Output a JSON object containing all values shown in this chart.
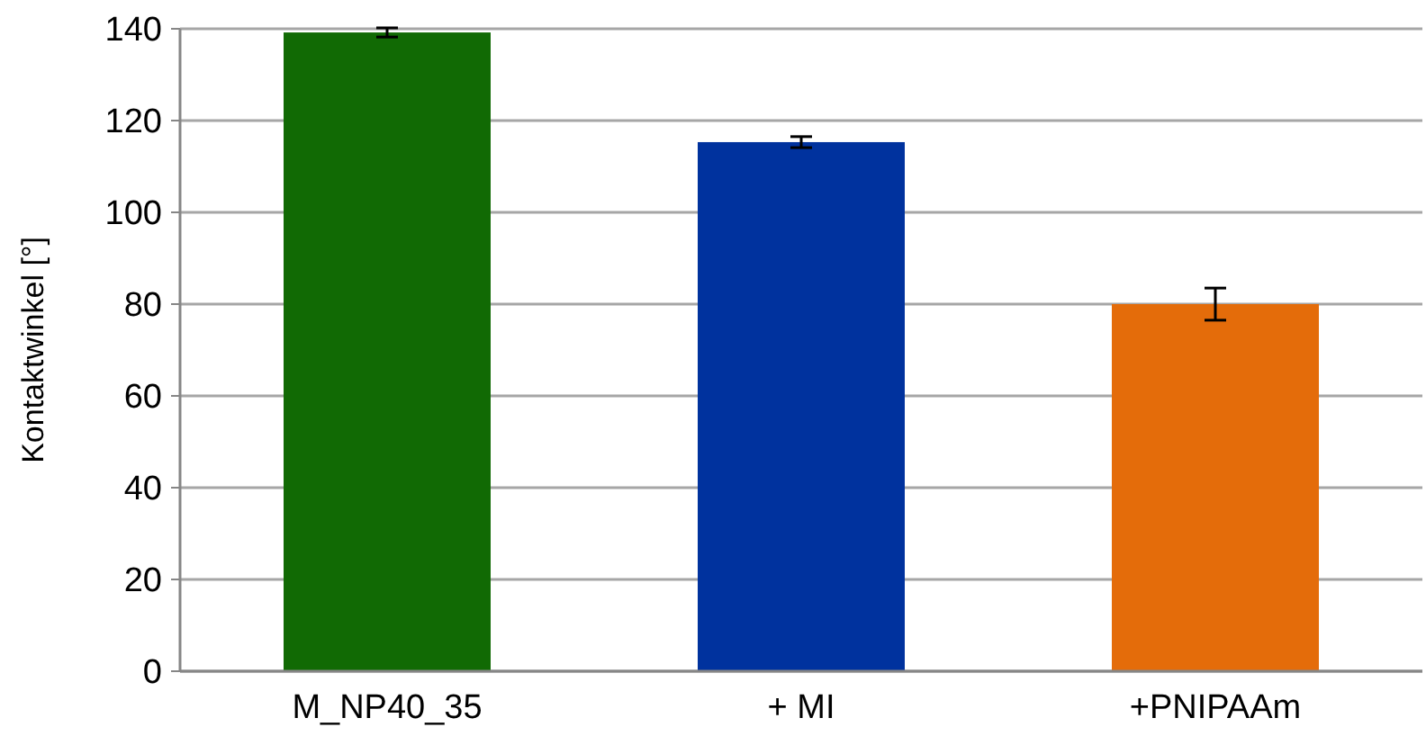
{
  "chart_data": {
    "type": "bar",
    "ylabel": "Kontaktwinkel [°]",
    "categories": [
      "M_NP40_35",
      "+ MI",
      "+PNIPAAm"
    ],
    "values": [
      139.2,
      115.3,
      80
    ],
    "colors": [
      "#116a04",
      "#00329e",
      "#e46c0a"
    ],
    "errors": [
      1,
      1.2,
      3.5
    ],
    "ylim": [
      0,
      140
    ],
    "yticks": [
      0,
      20,
      40,
      60,
      80,
      100,
      120,
      140
    ],
    "grid": "y"
  }
}
